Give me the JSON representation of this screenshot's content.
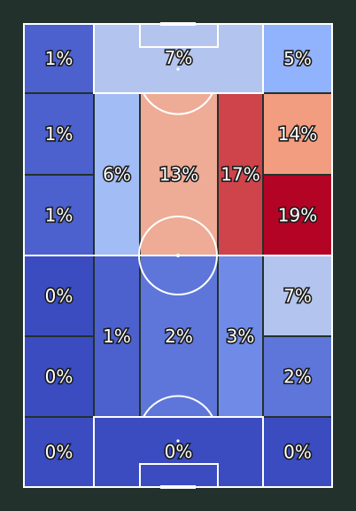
{
  "chart_data": {
    "type": "heatmap",
    "title": "",
    "colors": {
      "background": "#22312b",
      "lines": "#ffffff",
      "zone_border": "#22312b",
      "scale": [
        "#3b4cc0",
        "#8db0fe",
        "#dddcdc",
        "#f49a7b",
        "#b40426"
      ]
    },
    "value_range": [
      0,
      19
    ],
    "zones": [
      {
        "id": "z01",
        "label": "1%",
        "value": 1
      },
      {
        "id": "z02",
        "label": "7%",
        "value": 7
      },
      {
        "id": "z03",
        "label": "5%",
        "value": 5
      },
      {
        "id": "z04",
        "label": "1%",
        "value": 1
      },
      {
        "id": "z05",
        "label": "6%",
        "value": 6
      },
      {
        "id": "z06",
        "label": "13%",
        "value": 13
      },
      {
        "id": "z07",
        "label": "17%",
        "value": 17
      },
      {
        "id": "z08",
        "label": "14%",
        "value": 14
      },
      {
        "id": "z09",
        "label": "1%",
        "value": 1
      },
      {
        "id": "z10",
        "label": "19%",
        "value": 19
      },
      {
        "id": "z11",
        "label": "0%",
        "value": 0
      },
      {
        "id": "z12",
        "label": "1%",
        "value": 1
      },
      {
        "id": "z13",
        "label": "2%",
        "value": 2
      },
      {
        "id": "z14",
        "label": "3%",
        "value": 3
      },
      {
        "id": "z15",
        "label": "7%",
        "value": 7
      },
      {
        "id": "z16",
        "label": "0%",
        "value": 0
      },
      {
        "id": "z17",
        "label": "2%",
        "value": 2
      },
      {
        "id": "z18",
        "label": "0%",
        "value": 0
      },
      {
        "id": "z19",
        "label": "0%",
        "value": 0
      },
      {
        "id": "z20",
        "label": "0%",
        "value": 0
      }
    ]
  }
}
